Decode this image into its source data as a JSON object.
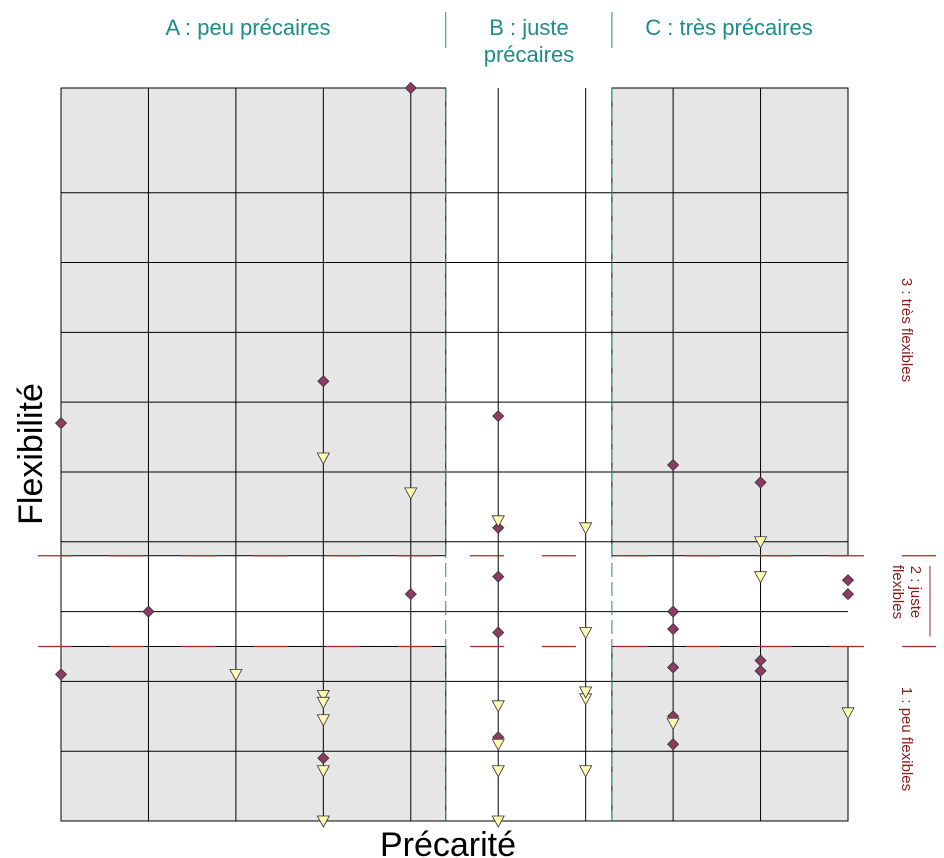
{
  "chart_data": {
    "type": "scatter",
    "xlabel": "Précarité",
    "ylabel": "Flexibilité",
    "xlim": [
      0,
      9
    ],
    "ylim": [
      0,
      10.5
    ],
    "column_groups": [
      {
        "label_lines": [
          "A : peu précaires"
        ],
        "range": [
          0,
          4.4
        ]
      },
      {
        "label_lines": [
          "B : juste",
          "précaires"
        ],
        "range": [
          4.4,
          6.3
        ]
      },
      {
        "label_lines": [
          "C : très précaires"
        ],
        "range": [
          6.3,
          9
        ]
      }
    ],
    "row_groups": [
      {
        "label_lines": [
          "3 : très flexibles"
        ],
        "range": [
          3.8,
          10.5
        ]
      },
      {
        "label_lines": [
          "2 : juste",
          "flexibles"
        ],
        "range": [
          2.5,
          3.8
        ]
      },
      {
        "label_lines": [
          "1 : peu flexibles"
        ],
        "range": [
          0,
          2.5
        ]
      }
    ],
    "shaded_blocks": [
      {
        "x": [
          0,
          4.4
        ],
        "y": [
          3.8,
          10.5
        ]
      },
      {
        "x": [
          6.3,
          9
        ],
        "y": [
          3.8,
          10.5
        ]
      },
      {
        "x": [
          0,
          4.4
        ],
        "y": [
          0,
          2.5
        ]
      },
      {
        "x": [
          6.3,
          9
        ],
        "y": [
          0,
          2.5
        ]
      }
    ],
    "grid_x": [
      1,
      2,
      3,
      4,
      5,
      6,
      7,
      8
    ],
    "grid_y": [
      1,
      2,
      3,
      4,
      5,
      6,
      7,
      8,
      9
    ],
    "series": [
      {
        "marker": "diamond",
        "color": "#8e3a63",
        "points": [
          [
            4,
            10.5
          ],
          [
            3,
            6.3
          ],
          [
            0,
            5.7
          ],
          [
            5,
            5.8
          ],
          [
            7,
            5.1
          ],
          [
            8,
            4.85
          ],
          [
            5,
            4.2
          ],
          [
            5,
            3.5
          ],
          [
            9,
            3.45
          ],
          [
            9,
            3.25
          ],
          [
            4,
            3.25
          ],
          [
            1,
            3.0
          ],
          [
            7,
            3.0
          ],
          [
            7,
            2.75
          ],
          [
            5,
            2.7
          ],
          [
            0,
            2.1
          ],
          [
            7,
            2.2
          ],
          [
            8,
            2.3
          ],
          [
            8,
            2.15
          ],
          [
            7,
            1.5
          ],
          [
            7,
            1.1
          ],
          [
            5,
            1.2
          ],
          [
            3,
            0.9
          ]
        ]
      },
      {
        "marker": "triangle-down",
        "color": "#fffcb4",
        "points": [
          [
            3,
            5.2
          ],
          [
            4,
            4.7
          ],
          [
            5,
            4.3
          ],
          [
            6,
            4.2
          ],
          [
            8,
            4.0
          ],
          [
            8,
            3.5
          ],
          [
            6,
            2.7
          ],
          [
            2,
            2.1
          ],
          [
            3,
            1.8
          ],
          [
            3,
            1.7
          ],
          [
            5,
            1.65
          ],
          [
            6,
            1.75
          ],
          [
            6,
            1.85
          ],
          [
            3,
            1.45
          ],
          [
            9,
            1.55
          ],
          [
            7,
            1.4
          ],
          [
            5,
            1.1
          ],
          [
            3,
            0.72
          ],
          [
            5,
            0.72
          ],
          [
            6,
            0.72
          ],
          [
            3,
            0.0
          ],
          [
            5,
            0.0
          ]
        ]
      }
    ]
  }
}
